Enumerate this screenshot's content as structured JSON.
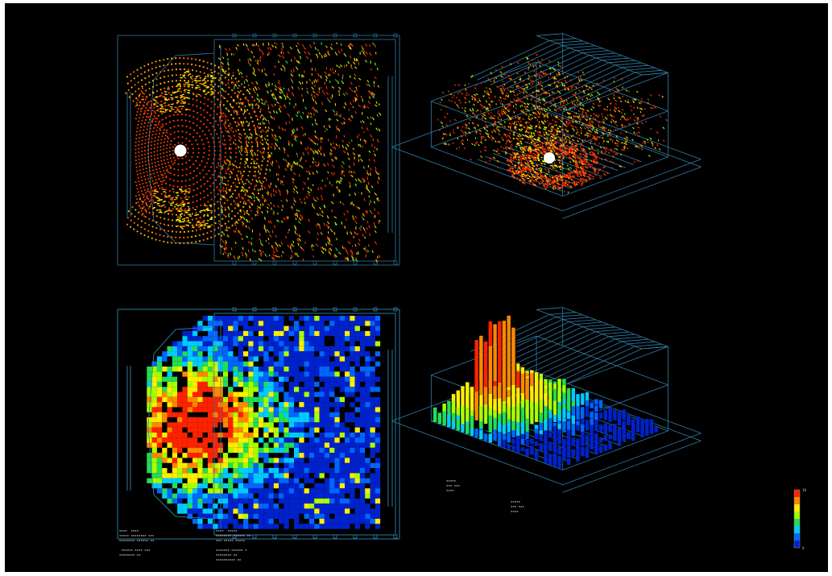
{
  "panels": [
    {
      "id": "plan-particles",
      "view": "top",
      "mode": "particles"
    },
    {
      "id": "iso-particles",
      "view": "isometric",
      "mode": "particles"
    },
    {
      "id": "plan-heatmap",
      "view": "top",
      "mode": "heatmap"
    },
    {
      "id": "iso-bars",
      "view": "isometric",
      "mode": "bars"
    }
  ],
  "colors": {
    "background": "#000000",
    "wireframe": "#2f7fa8",
    "source": "#ffffff",
    "scale": [
      "#ff2200",
      "#ff8800",
      "#ffee00",
      "#aaff00",
      "#22dd55",
      "#00ccff",
      "#0066ff",
      "#0022cc"
    ]
  },
  "colorbar": {
    "max_label": "10",
    "min_label": "0"
  }
}
